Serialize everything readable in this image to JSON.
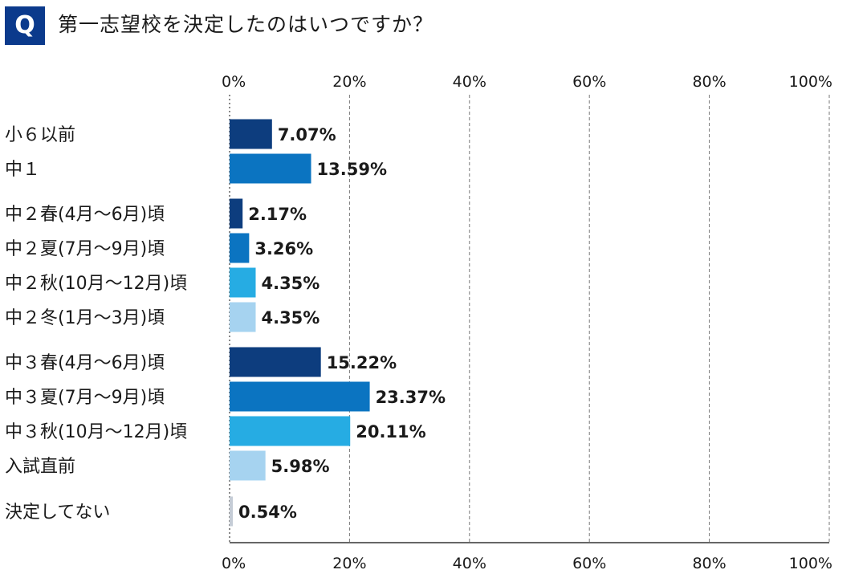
{
  "question": {
    "badge": "Q",
    "title": "第一志望校を決定したのはいつですか？"
  },
  "chart_data": {
    "type": "bar",
    "orientation": "horizontal",
    "xlim": [
      0,
      100
    ],
    "x_ticks": [
      "0%",
      "20%",
      "40%",
      "60%",
      "80%",
      "100%"
    ],
    "grid": "vertical dashed",
    "categories": [
      "小６以前",
      "中１",
      "中２春(4月～6月)頃",
      "中２夏(7月～9月)頃",
      "中２秋(10月～12月)頃",
      "中２冬(1月～3月)頃",
      "中３春(4月～6月)頃",
      "中３夏(7月～9月)頃",
      "中３秋(10月～12月)頃",
      "入試直前",
      "決定してない"
    ],
    "values": [
      7.07,
      13.59,
      2.17,
      3.26,
      4.35,
      4.35,
      15.22,
      23.37,
      20.11,
      5.98,
      0.54
    ],
    "value_labels": [
      "7.07%",
      "13.59%",
      "2.17%",
      "3.26%",
      "4.35%",
      "4.35%",
      "15.22%",
      "23.37%",
      "20.11%",
      "5.98%",
      "0.54%"
    ],
    "colors": [
      "#0d3d7e",
      "#0b74c1",
      "#0d3d7e",
      "#0b74c1",
      "#26ace3",
      "#a6d3f0",
      "#0d3d7e",
      "#0b74c1",
      "#26ace3",
      "#a6d3f0",
      "#c5ccd6"
    ]
  }
}
